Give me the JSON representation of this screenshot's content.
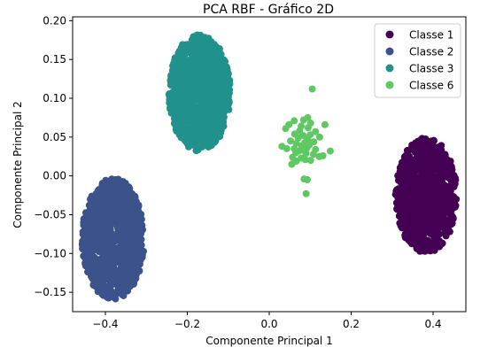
{
  "chart_data": {
    "type": "scatter",
    "title": "PCA RBF - Gráfico 2D",
    "xlabel": "Componente Principal 1",
    "ylabel": "Componente Principal 2",
    "xlim": [
      -0.48,
      0.48
    ],
    "ylim": [
      -0.175,
      0.205
    ],
    "xticks": [
      -0.4,
      -0.2,
      0.0,
      0.2,
      0.4
    ],
    "xtick_labels": [
      "−0.4",
      "−0.2",
      "0.0",
      "0.2",
      "0.4"
    ],
    "yticks": [
      -0.15,
      -0.1,
      -0.05,
      0.0,
      0.05,
      0.1,
      0.15,
      0.2
    ],
    "ytick_labels": [
      "−0.15",
      "−0.10",
      "−0.05",
      "0.00",
      "0.05",
      "0.10",
      "0.15",
      "0.20"
    ],
    "legend_position": "top-right",
    "grid": false,
    "series": [
      {
        "name": "Classe 1",
        "color": "#440154",
        "cluster": {
          "cx": 0.383,
          "cy": -0.025,
          "rx": 0.075,
          "ry": 0.074,
          "n": 900
        }
      },
      {
        "name": "Classe 2",
        "color": "#3b528b",
        "cluster": {
          "cx": -0.381,
          "cy": -0.081,
          "rx": 0.076,
          "ry": 0.078,
          "n": 900
        }
      },
      {
        "name": "Classe 3",
        "color": "#21918c",
        "cluster": {
          "cx": -0.17,
          "cy": 0.107,
          "rx": 0.075,
          "ry": 0.075,
          "n": 900
        }
      },
      {
        "name": "Classe 6",
        "color": "#5ec962",
        "points": [
          [
            0.105,
            0.112
          ],
          [
            0.094,
            0.075
          ],
          [
            0.084,
            0.072
          ],
          [
            0.061,
            0.071
          ],
          [
            0.101,
            0.068
          ],
          [
            0.048,
            0.066
          ],
          [
            0.136,
            0.066
          ],
          [
            0.078,
            0.064
          ],
          [
            0.04,
            0.061
          ],
          [
            0.095,
            0.062
          ],
          [
            0.074,
            0.058
          ],
          [
            0.113,
            0.057
          ],
          [
            0.062,
            0.054
          ],
          [
            0.1,
            0.053
          ],
          [
            0.083,
            0.052
          ],
          [
            0.123,
            0.05
          ],
          [
            0.071,
            0.049
          ],
          [
            0.094,
            0.047
          ],
          [
            0.052,
            0.045
          ],
          [
            0.109,
            0.044
          ],
          [
            0.087,
            0.043
          ],
          [
            0.066,
            0.042
          ],
          [
            0.098,
            0.04
          ],
          [
            0.079,
            0.039
          ],
          [
            0.092,
            0.036
          ],
          [
            0.061,
            0.035
          ],
          [
            0.113,
            0.034
          ],
          [
            0.031,
            0.038
          ],
          [
            0.043,
            0.035
          ],
          [
            0.083,
            0.033
          ],
          [
            0.072,
            0.032
          ],
          [
            0.149,
            0.032
          ],
          [
            0.065,
            0.03
          ],
          [
            0.09,
            0.029
          ],
          [
            0.108,
            0.028
          ],
          [
            0.131,
            0.026
          ],
          [
            0.122,
            0.025
          ],
          [
            0.057,
            0.024
          ],
          [
            0.078,
            0.023
          ],
          [
            0.088,
            0.021
          ],
          [
            0.101,
            0.02
          ],
          [
            0.066,
            0.019
          ],
          [
            0.055,
            0.015
          ],
          [
            0.085,
            -0.004
          ],
          [
            0.093,
            -0.005
          ],
          [
            0.09,
            -0.023
          ]
        ]
      }
    ]
  }
}
